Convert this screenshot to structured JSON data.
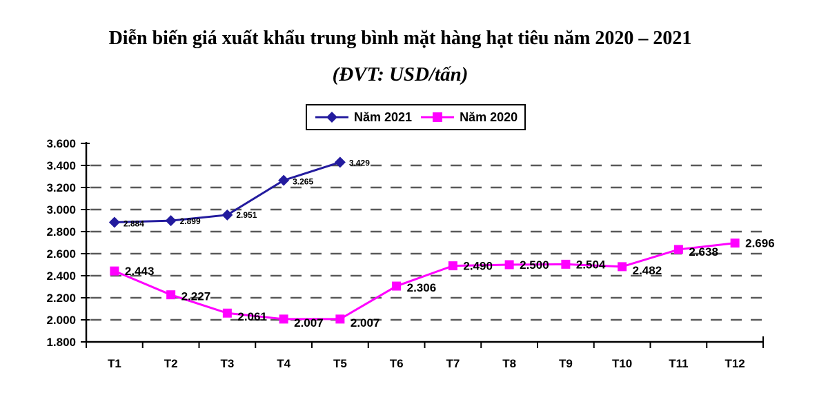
{
  "chart_data": {
    "type": "line",
    "title": "Diễn biến giá xuất khẩu trung bình mặt hàng hạt tiêu năm 2020 – 2021",
    "subtitle": "(ĐVT: USD/tấn)",
    "categories": [
      "T1",
      "T2",
      "T3",
      "T4",
      "T5",
      "T6",
      "T7",
      "T8",
      "T9",
      "T10",
      "T11",
      "T12"
    ],
    "series": [
      {
        "name": "Năm 2021",
        "color": "#231B9E",
        "marker": "diamond",
        "values": [
          2884,
          2899,
          2951,
          3265,
          3429
        ],
        "labels": [
          "2.884",
          "2.899",
          "2.951",
          "3.265",
          "3.429"
        ],
        "label_dx": 13,
        "label_dy": [
          6,
          5,
          4,
          6,
          5
        ]
      },
      {
        "name": "Năm 2020",
        "color": "#FF00FF",
        "marker": "square",
        "values": [
          2443,
          2227,
          2061,
          2007,
          2007,
          2306,
          2490,
          2500,
          2504,
          2482,
          2638,
          2696
        ],
        "labels": [
          "2.443",
          "2.227",
          "2.061",
          "2.007",
          "2.007",
          "2.306",
          "2.490",
          "2.500",
          "2.504",
          "2.482",
          "2.638",
          "2.696"
        ],
        "label_dx": 15,
        "label_dy": [
          6,
          8,
          11,
          11,
          11,
          8,
          6,
          6,
          6,
          11,
          9,
          6
        ]
      }
    ],
    "xlabel": "",
    "ylabel": "",
    "ylim": [
      1800,
      3600
    ],
    "ytick_step": 200,
    "ytick_labels": [
      "1.800",
      "2.000",
      "2.200",
      "2.400",
      "2.600",
      "2.800",
      "3.000",
      "3.200",
      "3.400",
      "3.600"
    ],
    "grid": "horizontal-dashed",
    "gridline_color": "#595959",
    "axis_color": "#000000",
    "text_color": "#000000",
    "legend_position": "top-center",
    "number_format": "thousands-dot"
  }
}
